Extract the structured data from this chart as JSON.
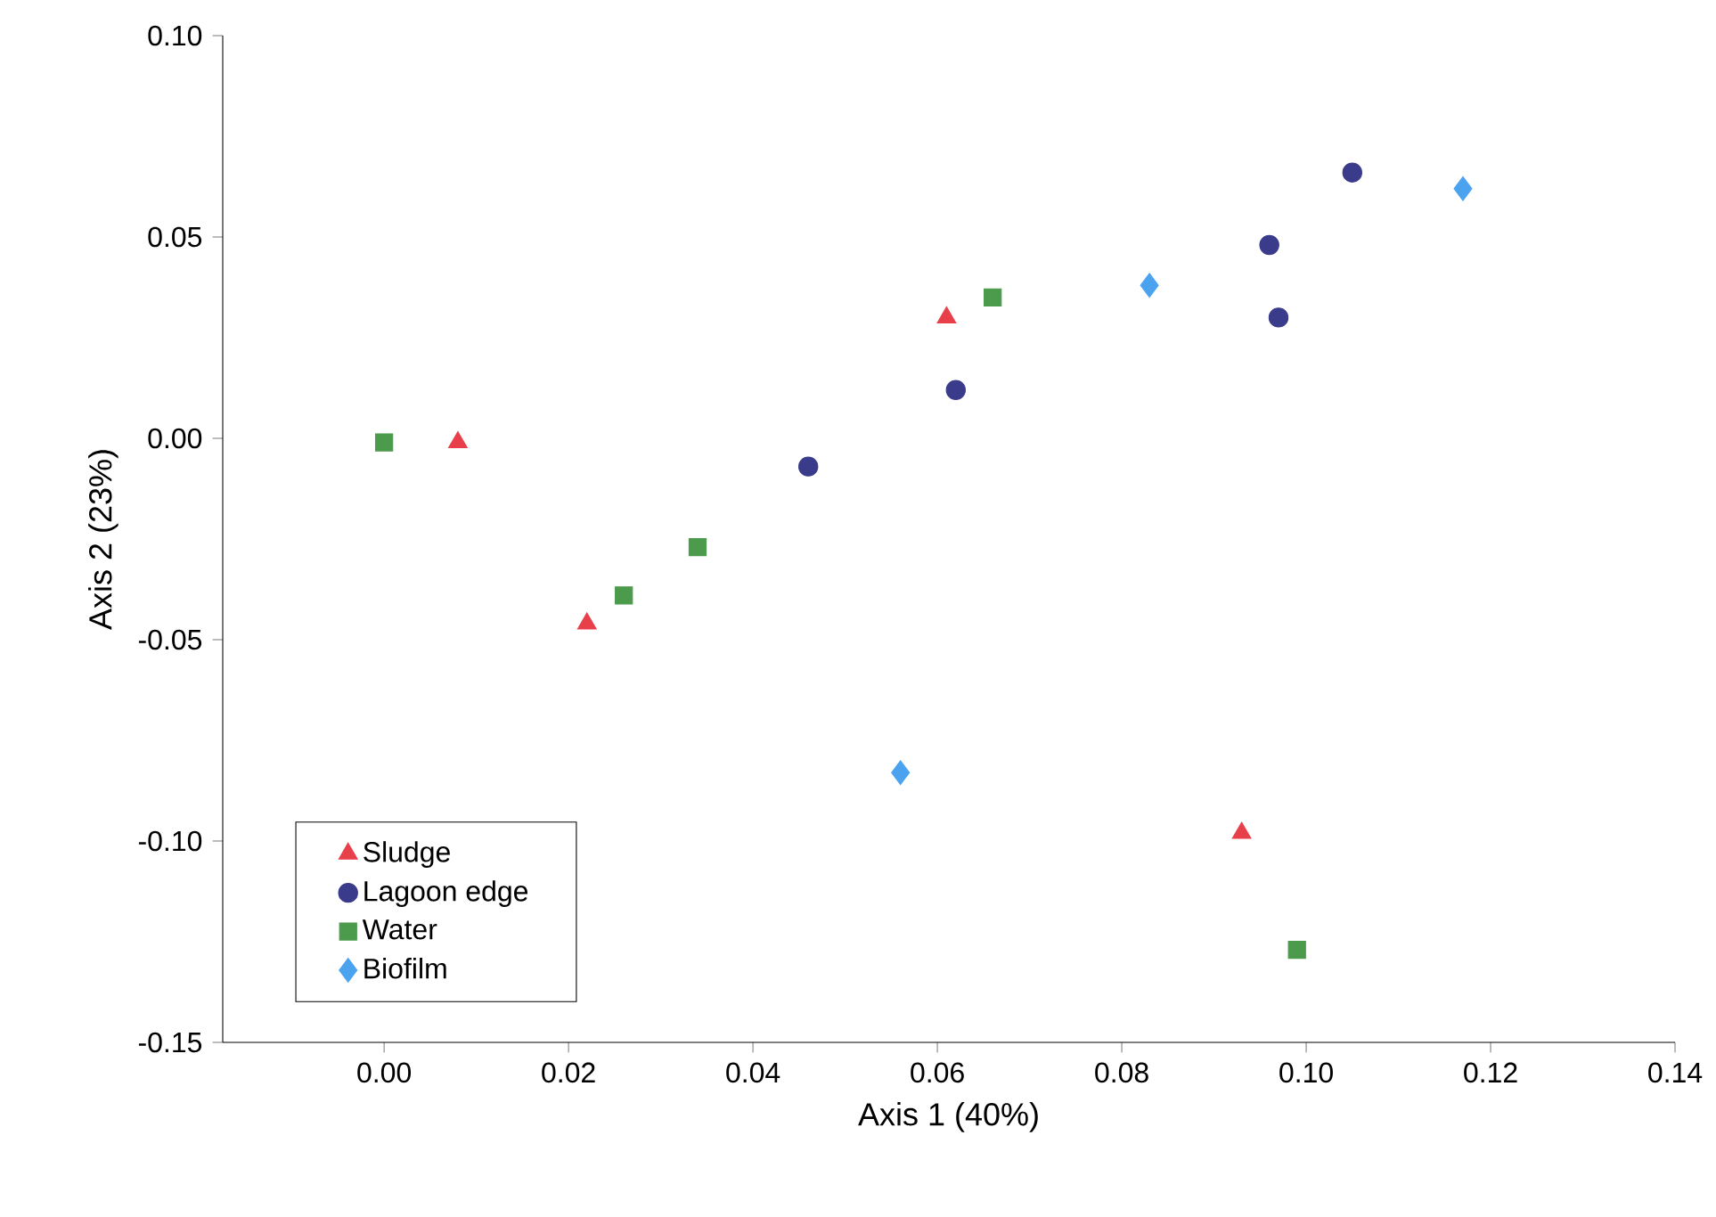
{
  "chart_data": {
    "type": "scatter",
    "xlabel": "Axis 1 (40%)",
    "ylabel": "Axis 2 (23%)",
    "xlim": [
      -0.0175,
      0.14
    ],
    "ylim": [
      -0.15,
      0.1
    ],
    "xticks": [
      {
        "value": 0,
        "label": "0.00"
      },
      {
        "value": 0.02,
        "label": "0.02"
      },
      {
        "value": 0.04,
        "label": "0.04"
      },
      {
        "value": 0.06,
        "label": "0.06"
      },
      {
        "value": 0.08,
        "label": "0.08"
      },
      {
        "value": 0.1,
        "label": "0.10"
      },
      {
        "value": 0.12,
        "label": "0.12"
      },
      {
        "value": 0.14,
        "label": "0.14"
      }
    ],
    "yticks": [
      {
        "value": -0.15,
        "label": "-0.15"
      },
      {
        "value": -0.1,
        "label": "-0.10"
      },
      {
        "value": -0.05,
        "label": "-0.05"
      },
      {
        "value": 0,
        "label": "0.00"
      },
      {
        "value": 0.05,
        "label": "0.05"
      },
      {
        "value": 0.1,
        "label": "0.10"
      }
    ],
    "grid": false,
    "legend": "bottom left",
    "series": [
      {
        "name": "Sludge",
        "color": "#e8404a",
        "marker": "triangle",
        "x": [
          0.008,
          0.061,
          0.022,
          0.093
        ],
        "values": [
          -0.001,
          0.03,
          -0.046,
          -0.098
        ]
      },
      {
        "name": "Lagoon edge",
        "color": "#3b3b8c",
        "marker": "circle",
        "x": [
          0.046,
          0.062,
          0.096,
          0.097,
          0.105
        ],
        "values": [
          -0.007,
          0.012,
          0.048,
          0.03,
          0.066
        ]
      },
      {
        "name": "Water",
        "color": "#4c9a4c",
        "marker": "square",
        "x": [
          0.0,
          0.026,
          0.034,
          0.066,
          0.099
        ],
        "values": [
          -0.001,
          -0.039,
          -0.027,
          0.035,
          -0.127
        ]
      },
      {
        "name": "Biofilm",
        "color": "#4ba3f0",
        "marker": "diamond",
        "x": [
          0.056,
          0.083,
          0.117
        ],
        "values": [
          -0.083,
          0.038,
          0.062
        ]
      }
    ]
  }
}
